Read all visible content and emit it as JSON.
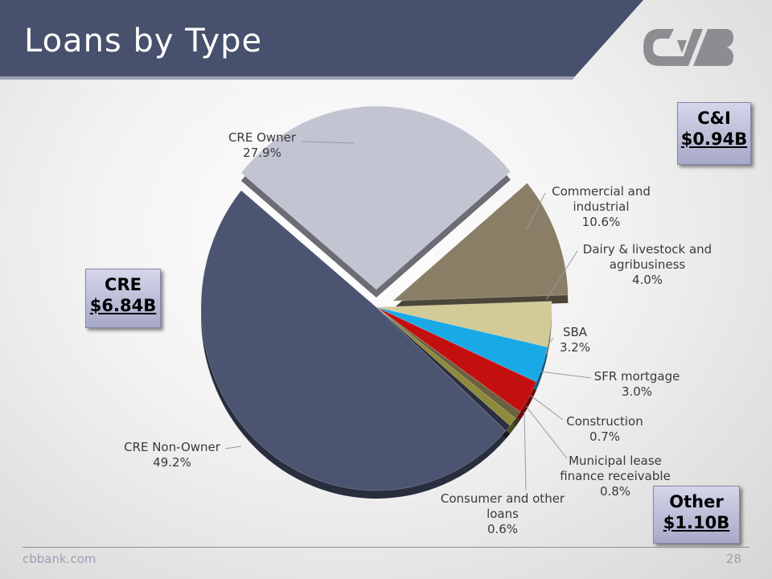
{
  "title": "Loans by Type",
  "logo_text": "CVB",
  "boxes": {
    "ci": {
      "label": "C&I",
      "amount": "$0.94B"
    },
    "cre": {
      "label": "CRE",
      "amount": "$6.84B"
    },
    "other": {
      "label": "Other",
      "amount": "$1.10B"
    }
  },
  "footer": {
    "url": "cbbank.com",
    "page": "28"
  },
  "chart_data": {
    "type": "pie",
    "title": "",
    "slices": [
      {
        "name": "Commercial and industrial",
        "label": "Commercial and industrial",
        "pct_label": "10.6%",
        "value": 10.6,
        "color": "#8a7f66",
        "exploded": true
      },
      {
        "name": "Dairy & livestock and agribusiness",
        "label": "Dairy & livestock and agribusiness",
        "pct_label": "4.0%",
        "value": 4.0,
        "color": "#d2ca97"
      },
      {
        "name": "SBA",
        "label": "SBA",
        "pct_label": "3.2%",
        "value": 3.2,
        "color": "#19a9e6"
      },
      {
        "name": "SFR mortgage",
        "label": "SFR mortgage",
        "pct_label": "3.0%",
        "value": 3.0,
        "color": "#c30f0f"
      },
      {
        "name": "Construction",
        "label": "Construction",
        "pct_label": "0.7%",
        "value": 0.7,
        "color": "#6b6140"
      },
      {
        "name": "Municipal lease finance receivable",
        "label": "Municipal lease finance receivable",
        "pct_label": "0.8%",
        "value": 0.8,
        "color": "#8d8a3a"
      },
      {
        "name": "Consumer and other loans",
        "label": "Consumer and other loans",
        "pct_label": "0.6%",
        "value": 0.6,
        "color": "#2a2e3e"
      },
      {
        "name": "CRE Non-Owner",
        "label": "CRE Non-Owner",
        "pct_label": "49.2%",
        "value": 49.2,
        "color": "#4b5470"
      },
      {
        "name": "CRE Owner",
        "label": "CRE Owner",
        "pct_label": "27.9%",
        "value": 27.9,
        "color": "#c3c4d2",
        "exploded": true
      }
    ]
  }
}
